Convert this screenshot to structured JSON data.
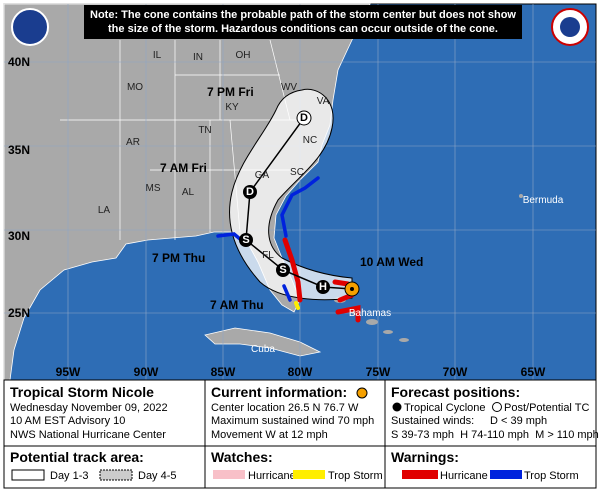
{
  "note": "Note: The cone contains the probable path of the storm center but does not show the size of the storm. Hazardous conditions can occur outside of the cone.",
  "map": {
    "lat_labels": [
      "40N",
      "35N",
      "30N",
      "25N"
    ],
    "lon_labels": [
      "95W",
      "90W",
      "85W",
      "80W",
      "75W",
      "70W",
      "65W"
    ],
    "region_labels": [
      "IL",
      "IN",
      "OH",
      "MO",
      "KY",
      "WV",
      "VA",
      "NC",
      "TN",
      "SC",
      "AR",
      "MS",
      "AL",
      "GA",
      "LA",
      "FL",
      "Bermuda",
      "Bahamas",
      "Cuba"
    ],
    "track_labels": [
      "7 PM Fri",
      "7 AM Fri",
      "7 PM Thu",
      "7 AM Thu",
      "10 AM Wed"
    ],
    "points": [
      "D",
      "D",
      "S",
      "S",
      "H"
    ]
  },
  "storm": {
    "name": "Tropical Storm Nicole",
    "date": "Wednesday November 09, 2022",
    "advisory": "10 AM EST Advisory 10",
    "center": "NWS National Hurricane Center"
  },
  "current": {
    "title": "Current information:",
    "location": "Center location 26.5 N 76.7 W",
    "wind": "Maximum sustained wind 70 mph",
    "movement": "Movement W at 12 mph"
  },
  "forecast": {
    "title": "Forecast positions:",
    "tc": "Tropical Cyclone",
    "post": "Post/Potential TC",
    "winds": "Sustained winds:",
    "d": "D < 39 mph",
    "scale": "S 39-73 mph  H 74-110 mph  M > 110 mph"
  },
  "track_area": {
    "title": "Potential track area:",
    "day13": "Day 1-3",
    "day45": "Day 4-5"
  },
  "watches": {
    "title": "Watches:",
    "hurricane": "Hurricane",
    "ts": "Trop Storm"
  },
  "warnings": {
    "title": "Warnings:",
    "hurricane": "Hurricane",
    "ts": "Trop Storm"
  }
}
